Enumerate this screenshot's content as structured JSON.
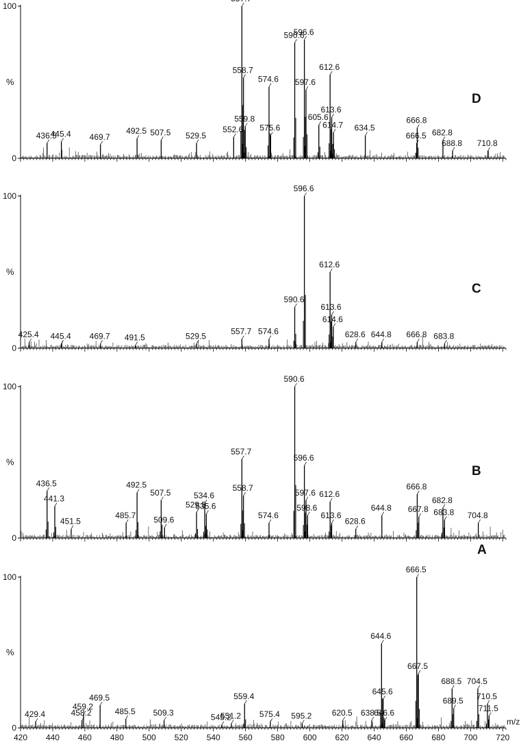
{
  "chart_data": {
    "type": "bar",
    "xlabel": "m/z",
    "x_ticks": [
      420,
      440,
      460,
      480,
      500,
      520,
      540,
      560,
      580,
      600,
      620,
      640,
      660,
      680,
      700,
      720
    ],
    "xlim": [
      420,
      722
    ],
    "ylim": [
      0,
      100
    ],
    "y_tick_labels": [
      "0",
      "100"
    ],
    "y_unit": "%",
    "panels": [
      {
        "id": "D",
        "label": "D",
        "peaks": [
          {
            "mz": 436.5,
            "intensity": 10,
            "label": "436.5"
          },
          {
            "mz": 445.4,
            "intensity": 11,
            "label": "445.4"
          },
          {
            "mz": 469.7,
            "intensity": 9,
            "label": "469.7"
          },
          {
            "mz": 492.5,
            "intensity": 13,
            "label": "492.5"
          },
          {
            "mz": 507.5,
            "intensity": 12,
            "label": "507.5"
          },
          {
            "mz": 529.5,
            "intensity": 10,
            "label": "529.5"
          },
          {
            "mz": 552.6,
            "intensity": 14,
            "label": "552.6"
          },
          {
            "mz": 557.7,
            "intensity": 100,
            "label": "557.7"
          },
          {
            "mz": 558.7,
            "intensity": 53,
            "label": "558.7"
          },
          {
            "mz": 559.8,
            "intensity": 21,
            "label": "559.8"
          },
          {
            "mz": 574.6,
            "intensity": 47,
            "label": "574.6"
          },
          {
            "mz": 575.6,
            "intensity": 15,
            "label": "575.6"
          },
          {
            "mz": 590.6,
            "intensity": 76,
            "label": "590.6"
          },
          {
            "mz": 596.6,
            "intensity": 78,
            "label": "596.6"
          },
          {
            "mz": 597.6,
            "intensity": 45,
            "label": "597.6"
          },
          {
            "mz": 605.6,
            "intensity": 22,
            "label": "605.6"
          },
          {
            "mz": 612.6,
            "intensity": 55,
            "label": "612.6"
          },
          {
            "mz": 613.6,
            "intensity": 27,
            "label": "613.6"
          },
          {
            "mz": 614.7,
            "intensity": 17,
            "label": "614.7"
          },
          {
            "mz": 634.5,
            "intensity": 15,
            "label": "634.5"
          },
          {
            "mz": 666.5,
            "intensity": 10,
            "label": "666.5"
          },
          {
            "mz": 666.8,
            "intensity": 20,
            "label": "666.8"
          },
          {
            "mz": 682.8,
            "intensity": 12,
            "label": "682.8"
          },
          {
            "mz": 688.8,
            "intensity": 5,
            "label": "688.8"
          },
          {
            "mz": 710.8,
            "intensity": 5,
            "label": "710.8"
          }
        ]
      },
      {
        "id": "C",
        "label": "C",
        "peaks": [
          {
            "mz": 425.4,
            "intensity": 4,
            "label": "425.4"
          },
          {
            "mz": 445.4,
            "intensity": 3,
            "label": "445.4"
          },
          {
            "mz": 469.7,
            "intensity": 3,
            "label": "469.7"
          },
          {
            "mz": 491.5,
            "intensity": 2,
            "label": "491.5"
          },
          {
            "mz": 529.5,
            "intensity": 3,
            "label": "529.5"
          },
          {
            "mz": 557.7,
            "intensity": 6,
            "label": "557.7"
          },
          {
            "mz": 574.6,
            "intensity": 6,
            "label": "574.6"
          },
          {
            "mz": 590.6,
            "intensity": 27,
            "label": "590.6"
          },
          {
            "mz": 596.6,
            "intensity": 100,
            "label": "596.6"
          },
          {
            "mz": 612.6,
            "intensity": 50,
            "label": "612.6"
          },
          {
            "mz": 613.6,
            "intensity": 22,
            "label": "613.6"
          },
          {
            "mz": 614.6,
            "intensity": 14,
            "label": "614.6"
          },
          {
            "mz": 628.6,
            "intensity": 4,
            "label": "628.6"
          },
          {
            "mz": 644.8,
            "intensity": 4,
            "label": "644.8"
          },
          {
            "mz": 666.8,
            "intensity": 4,
            "label": "666.8"
          },
          {
            "mz": 683.8,
            "intensity": 3,
            "label": "683.8"
          }
        ]
      },
      {
        "id": "B",
        "label": "B",
        "peaks": [
          {
            "mz": 436.5,
            "intensity": 31,
            "label": "436.5"
          },
          {
            "mz": 441.3,
            "intensity": 21,
            "label": "441.3"
          },
          {
            "mz": 451.5,
            "intensity": 6,
            "label": "451.5"
          },
          {
            "mz": 485.7,
            "intensity": 10,
            "label": "485.7"
          },
          {
            "mz": 492.5,
            "intensity": 30,
            "label": "492.5"
          },
          {
            "mz": 507.5,
            "intensity": 25,
            "label": "507.5"
          },
          {
            "mz": 509.6,
            "intensity": 7,
            "label": "509.6"
          },
          {
            "mz": 529.5,
            "intensity": 17,
            "label": "529.5"
          },
          {
            "mz": 534.6,
            "intensity": 23,
            "label": "534.6"
          },
          {
            "mz": 535.6,
            "intensity": 16,
            "label": "535.6"
          },
          {
            "mz": 557.7,
            "intensity": 52,
            "label": "557.7"
          },
          {
            "mz": 558.7,
            "intensity": 28,
            "label": "558.7"
          },
          {
            "mz": 574.6,
            "intensity": 10,
            "label": "574.6"
          },
          {
            "mz": 590.6,
            "intensity": 100,
            "label": "590.6"
          },
          {
            "mz": 596.6,
            "intensity": 48,
            "label": "596.6"
          },
          {
            "mz": 597.6,
            "intensity": 25,
            "label": "597.6"
          },
          {
            "mz": 598.6,
            "intensity": 15,
            "label": "598.6"
          },
          {
            "mz": 612.6,
            "intensity": 24,
            "label": "612.6"
          },
          {
            "mz": 613.6,
            "intensity": 10,
            "label": "613.6"
          },
          {
            "mz": 628.6,
            "intensity": 6,
            "label": "628.6"
          },
          {
            "mz": 644.8,
            "intensity": 15,
            "label": "644.8"
          },
          {
            "mz": 666.8,
            "intensity": 29,
            "label": "666.8"
          },
          {
            "mz": 667.8,
            "intensity": 14,
            "label": "667.8"
          },
          {
            "mz": 682.8,
            "intensity": 20,
            "label": "682.8"
          },
          {
            "mz": 683.8,
            "intensity": 12,
            "label": "683.8"
          },
          {
            "mz": 704.8,
            "intensity": 10,
            "label": "704.8"
          }
        ]
      },
      {
        "id": "A",
        "label": "A",
        "peaks": [
          {
            "mz": 429.4,
            "intensity": 4,
            "label": "429.4"
          },
          {
            "mz": 458.2,
            "intensity": 5,
            "label": "458.2"
          },
          {
            "mz": 459.2,
            "intensity": 9,
            "label": "459.2"
          },
          {
            "mz": 469.5,
            "intensity": 15,
            "label": "469.5"
          },
          {
            "mz": 485.5,
            "intensity": 6,
            "label": "485.5"
          },
          {
            "mz": 509.3,
            "intensity": 5,
            "label": "509.3"
          },
          {
            "mz": 545.2,
            "intensity": 2,
            "label": "545.2"
          },
          {
            "mz": 551.2,
            "intensity": 3,
            "label": "551.2"
          },
          {
            "mz": 559.4,
            "intensity": 16,
            "label": "559.4"
          },
          {
            "mz": 575.4,
            "intensity": 4,
            "label": "575.4"
          },
          {
            "mz": 595.2,
            "intensity": 3,
            "label": "595.2"
          },
          {
            "mz": 620.5,
            "intensity": 5,
            "label": "620.5"
          },
          {
            "mz": 638.5,
            "intensity": 5,
            "label": "638.5"
          },
          {
            "mz": 644.6,
            "intensity": 56,
            "label": "644.6"
          },
          {
            "mz": 645.6,
            "intensity": 19,
            "label": "645.6"
          },
          {
            "mz": 646.6,
            "intensity": 5,
            "label": "646.6"
          },
          {
            "mz": 666.5,
            "intensity": 100,
            "label": "666.5"
          },
          {
            "mz": 667.5,
            "intensity": 36,
            "label": "667.5"
          },
          {
            "mz": 688.5,
            "intensity": 26,
            "label": "688.5"
          },
          {
            "mz": 689.5,
            "intensity": 13,
            "label": "689.5"
          },
          {
            "mz": 704.5,
            "intensity": 26,
            "label": "704.5"
          },
          {
            "mz": 710.5,
            "intensity": 16,
            "label": "710.5"
          },
          {
            "mz": 711.5,
            "intensity": 8,
            "label": "711.5"
          }
        ]
      }
    ]
  }
}
